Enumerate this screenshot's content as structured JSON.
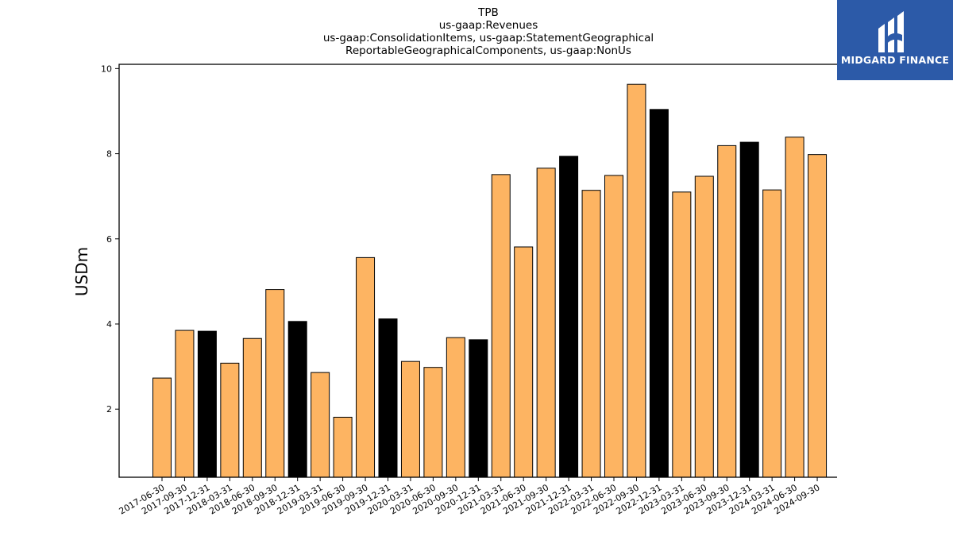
{
  "chart_data": {
    "type": "bar",
    "title_lines": [
      "TPB",
      "us-gaap:Revenues",
      "us-gaap:ConsolidationItems, us-gaap:StatementGeographical",
      "ReportableGeographicalComponents, us-gaap:NonUs"
    ],
    "ylabel": "USDm",
    "xlabel": "",
    "ylim": [
      0.4,
      10.1
    ],
    "yticks": [
      2,
      4,
      6,
      8,
      10
    ],
    "grid": false,
    "colors": {
      "quarter": "#fdb462",
      "year_end": "#000000",
      "edge": "#000000"
    },
    "categories": [
      "2017-06-30",
      "2017-09-30",
      "2017-12-31",
      "2018-03-31",
      "2018-06-30",
      "2018-09-30",
      "2018-12-31",
      "2019-03-31",
      "2019-06-30",
      "2019-09-30",
      "2019-12-31",
      "2020-03-31",
      "2020-06-30",
      "2020-09-30",
      "2020-12-31",
      "2021-03-31",
      "2021-06-30",
      "2021-09-30",
      "2021-12-31",
      "2022-03-31",
      "2022-06-30",
      "2022-09-30",
      "2022-12-31",
      "2023-03-31",
      "2023-06-30",
      "2023-09-30",
      "2023-12-31",
      "2024-03-31",
      "2024-06-30",
      "2024-09-30"
    ],
    "values": [
      2.73,
      3.85,
      3.83,
      3.08,
      3.66,
      4.81,
      4.06,
      2.86,
      1.81,
      5.56,
      4.12,
      3.12,
      2.98,
      3.68,
      3.63,
      7.51,
      5.81,
      7.66,
      7.94,
      7.14,
      7.49,
      9.63,
      9.04,
      7.1,
      7.47,
      8.19,
      8.27,
      7.15,
      8.39,
      7.98
    ]
  },
  "logo": {
    "text": "MIDGARD FINANCE",
    "background": "#2c5aa8"
  }
}
